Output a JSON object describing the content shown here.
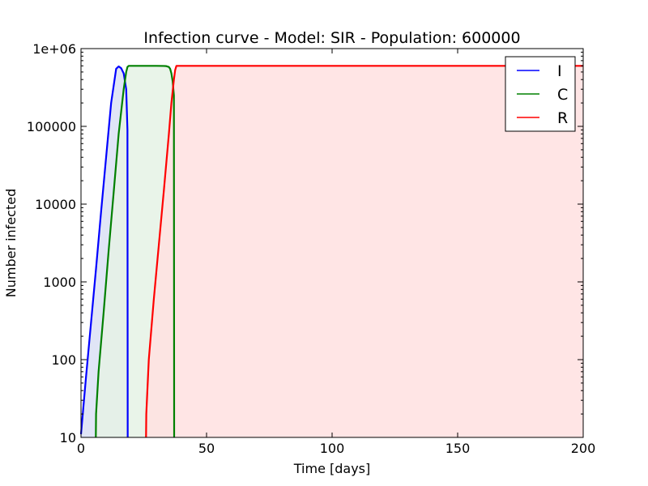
{
  "chart_data": {
    "type": "line",
    "title": "Infection curve - Model: SIR - Population: 600000",
    "xlabel": "Time [days]",
    "ylabel": "Number infected",
    "xlim": [
      0,
      200
    ],
    "ylim": [
      10,
      1000000
    ],
    "yscale": "log",
    "x_ticks": [
      0,
      50,
      100,
      150,
      200
    ],
    "x_tick_labels": [
      "0",
      "50",
      "100",
      "150",
      "200"
    ],
    "y_ticks": [
      10,
      100,
      1000,
      10000,
      100000,
      1000000
    ],
    "y_tick_labels": [
      "10",
      "100",
      "1000",
      "10000",
      "100000",
      "1e+06"
    ],
    "grid": false,
    "legend_position": "top-right",
    "series": [
      {
        "name": "I",
        "color": "#0000ff",
        "fill": "#dbe1f5",
        "x": [
          0,
          2,
          4,
          6,
          8,
          10,
          12,
          14,
          15,
          16,
          17,
          18,
          18.5,
          18.6
        ],
        "y": [
          11,
          60,
          300,
          1500,
          8000,
          40000,
          200000,
          550000,
          590000,
          560000,
          480000,
          300000,
          90000,
          10
        ]
      },
      {
        "name": "C",
        "color": "#008000",
        "fill": "#e5f2e5",
        "x": [
          5.9,
          6,
          7,
          9,
          11,
          13,
          15,
          17,
          18,
          18.5,
          19,
          25,
          30,
          33,
          34,
          35,
          35.5,
          36,
          36.5,
          37,
          37.1
        ],
        "y": [
          10,
          20,
          70,
          400,
          2500,
          14000,
          80000,
          300000,
          500000,
          580000,
          600000,
          600000,
          600000,
          598000,
          595000,
          580000,
          550000,
          480000,
          380000,
          250000,
          10
        ]
      },
      {
        "name": "R",
        "color": "#ff0000",
        "fill": "#ffe0e0",
        "x": [
          25.9,
          26,
          27,
          29,
          31,
          33,
          35,
          36,
          37,
          37.5,
          38,
          40,
          100,
          150,
          200
        ],
        "y": [
          10,
          20,
          100,
          600,
          3000,
          15000,
          80000,
          200000,
          400000,
          530000,
          600000,
          600000,
          600000,
          600000,
          600000
        ]
      }
    ]
  }
}
